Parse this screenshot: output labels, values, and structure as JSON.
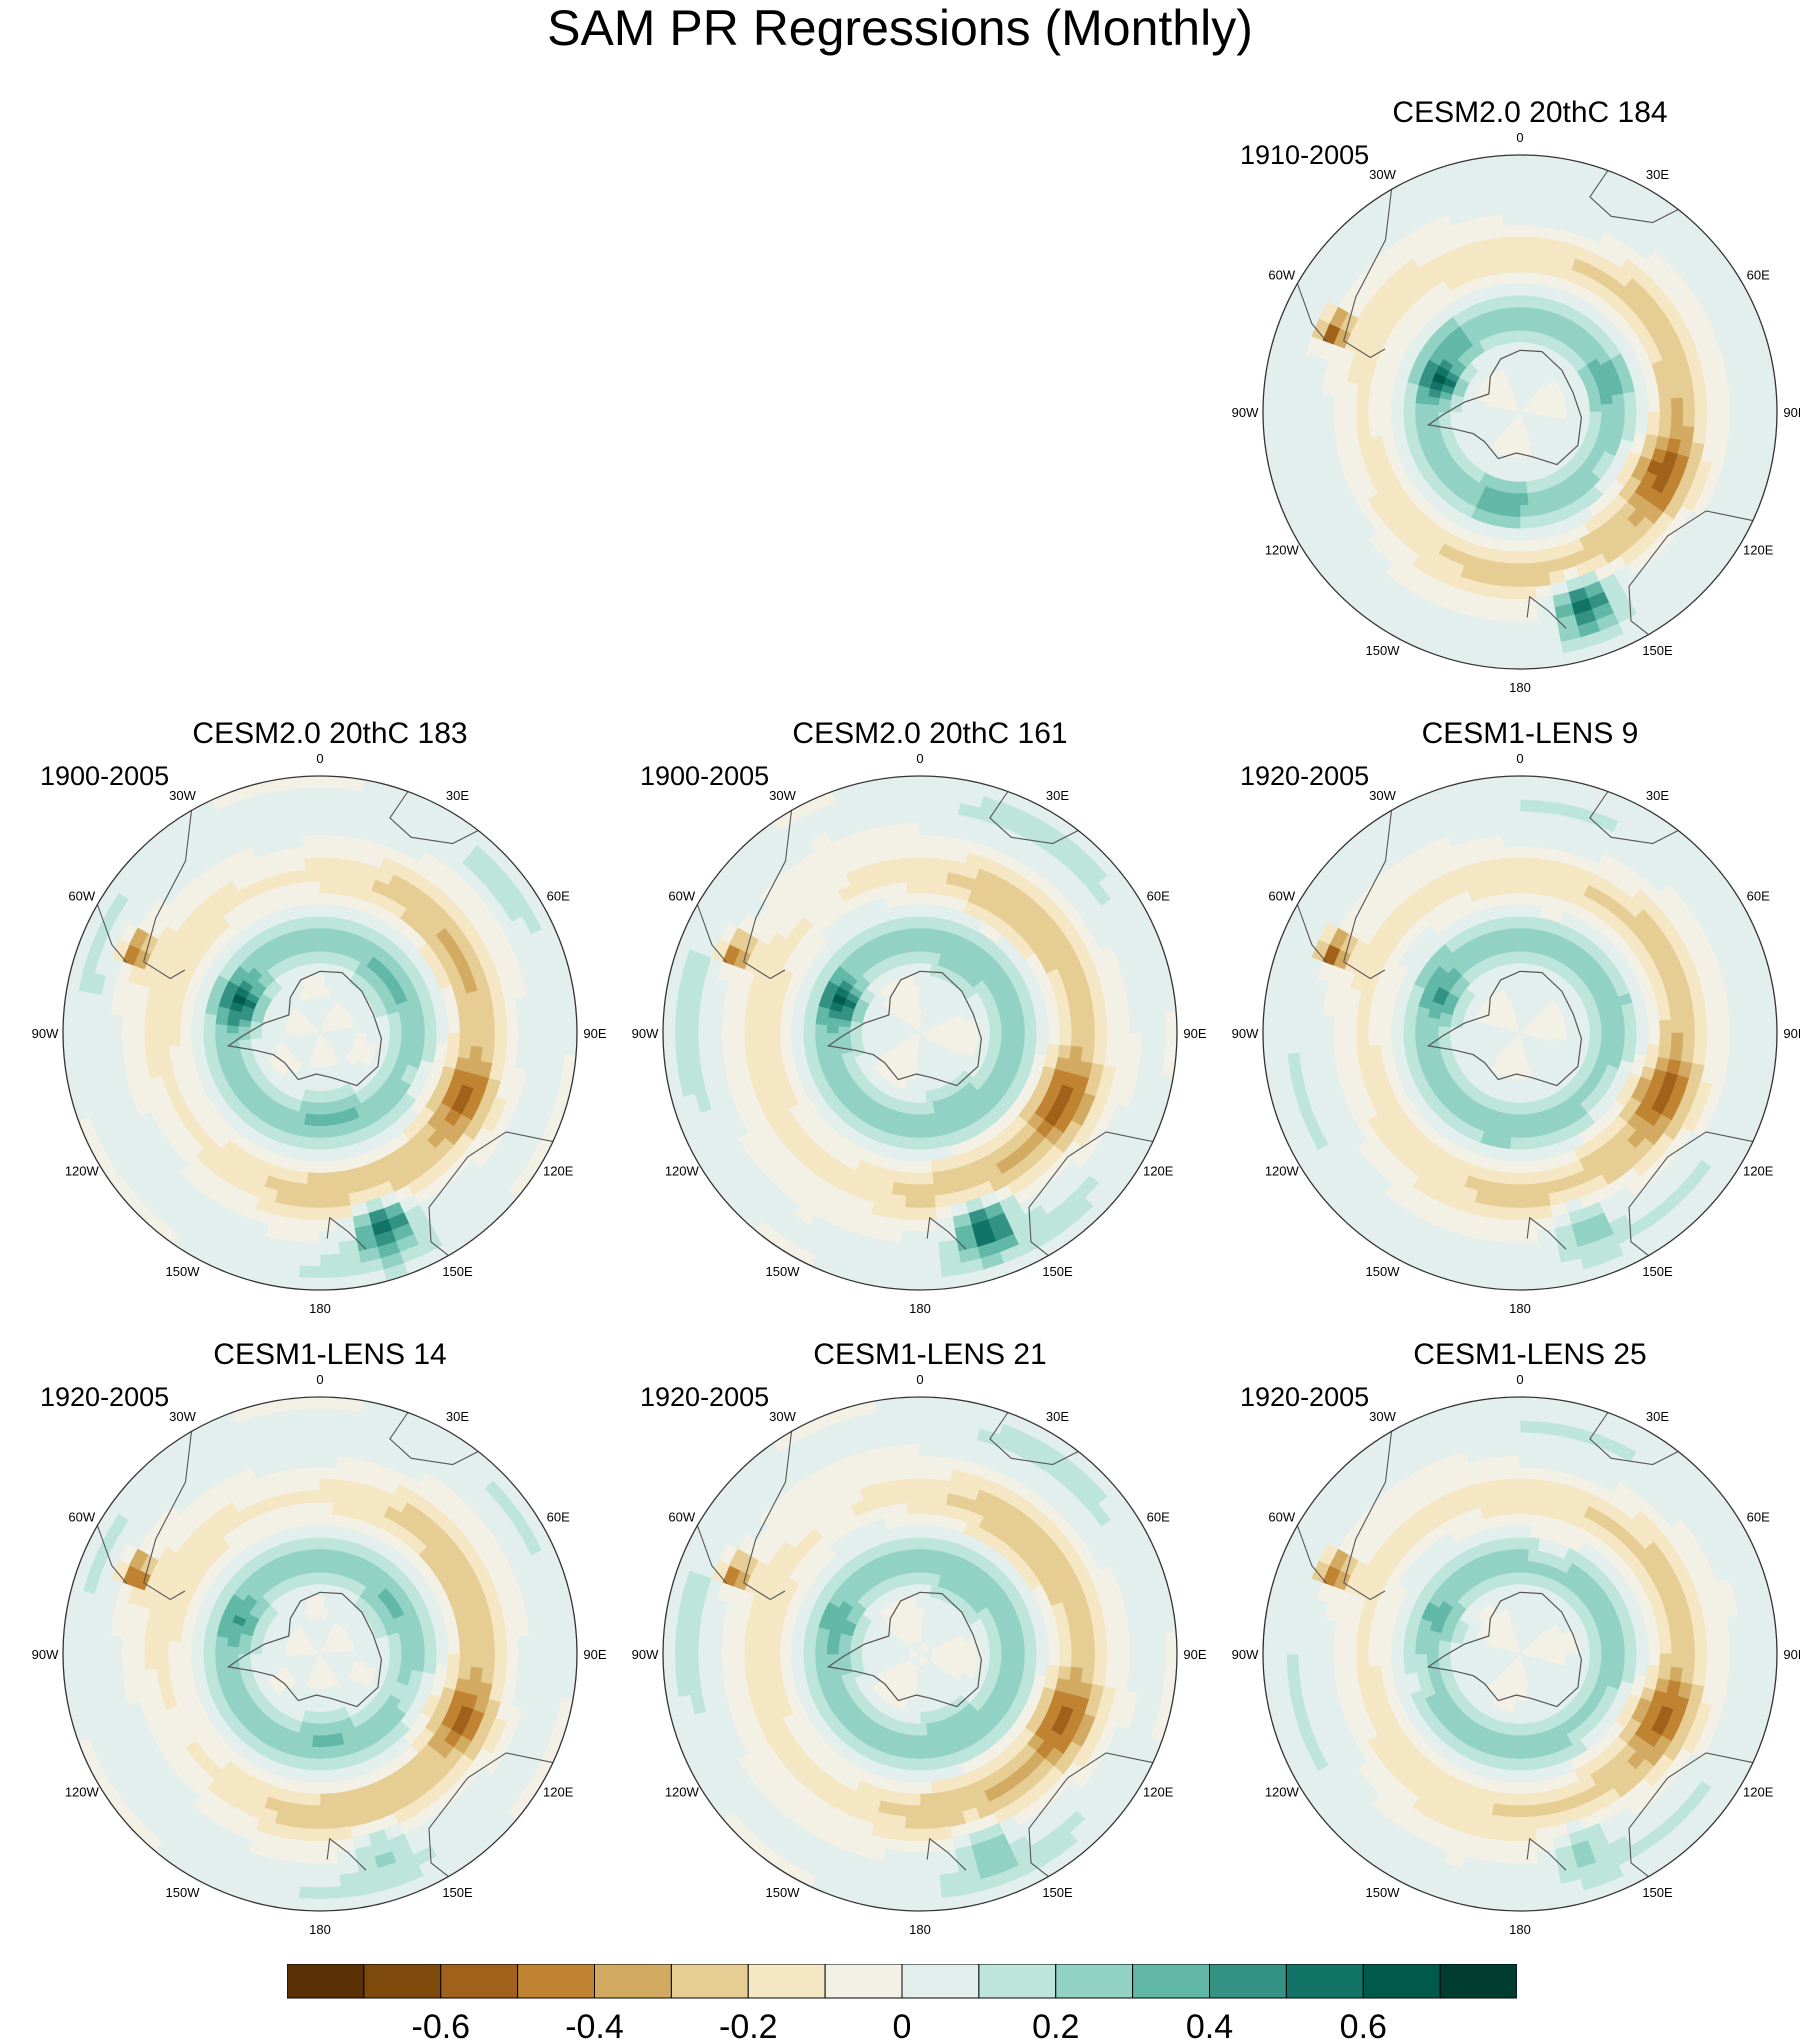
{
  "title": "SAM PR Regressions (Monthly)",
  "longitude_labels": [
    "0",
    "30E",
    "60E",
    "90E",
    "120E",
    "150E",
    "180",
    "150W",
    "120W",
    "90W",
    "60W",
    "30W"
  ],
  "panels": [
    {
      "id": "p184",
      "title": "CESM2.0 20thC 184",
      "period": "1910-2005",
      "row": 0,
      "col": 2
    },
    {
      "id": "p183",
      "title": "CESM2.0 20thC 183",
      "period": "1900-2005",
      "row": 1,
      "col": 0
    },
    {
      "id": "p161",
      "title": "CESM2.0 20thC 161",
      "period": "1900-2005",
      "row": 1,
      "col": 1
    },
    {
      "id": "lens9",
      "title": "CESM1-LENS 9",
      "period": "1920-2005",
      "row": 1,
      "col": 2
    },
    {
      "id": "lens14",
      "title": "CESM1-LENS 14",
      "period": "1920-2005",
      "row": 2,
      "col": 0
    },
    {
      "id": "lens21",
      "title": "CESM1-LENS 21",
      "period": "1920-2005",
      "row": 2,
      "col": 1
    },
    {
      "id": "lens25",
      "title": "CESM1-LENS 25",
      "period": "1920-2005",
      "row": 2,
      "col": 2
    }
  ],
  "chart_data": {
    "type": "heatmap",
    "projection": "south-polar-stereographic",
    "colorbar": {
      "levels": [
        -0.7,
        -0.6,
        -0.5,
        -0.4,
        -0.3,
        -0.2,
        -0.1,
        0,
        0.1,
        0.2,
        0.3,
        0.4,
        0.5,
        0.6,
        0.7
      ],
      "tick_labels": [
        "-0.6",
        "-0.4",
        "-0.2",
        "0",
        "0.2",
        "0.4",
        "0.6"
      ],
      "tick_values": [
        -0.6,
        -0.4,
        -0.2,
        0,
        0.2,
        0.4,
        0.6
      ],
      "colors": [
        "#5a3104",
        "#7d4a0c",
        "#a0621a",
        "#c08331",
        "#d3aa62",
        "#e6cd93",
        "#f5e6c4",
        "#f3f0e6",
        "#e3efec",
        "#bde5dc",
        "#91d2c4",
        "#62b8a6",
        "#339284",
        "#117466",
        "#005a4b",
        "#003d31"
      ]
    }
  }
}
